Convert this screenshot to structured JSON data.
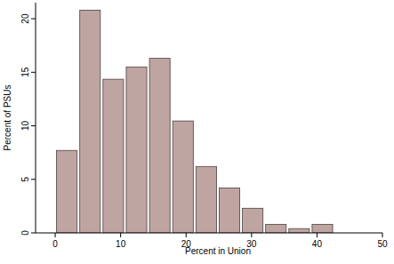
{
  "chart_data": {
    "type": "histogram",
    "x_label": "Percent in Union",
    "y_label": "Percent of PSUs",
    "bins": [
      0,
      3.55,
      7.1,
      10.65,
      14.2,
      17.75,
      21.3,
      24.85,
      28.4,
      31.95,
      35.5,
      39.05,
      42.6
    ],
    "values": [
      7.7,
      20.8,
      14.35,
      15.5,
      16.3,
      10.45,
      6.2,
      4.2,
      2.3,
      0.8,
      0.4,
      0.8
    ],
    "color": "#bfa5a2",
    "xlim": [
      -3,
      50
    ],
    "xticks": [
      0,
      10,
      20,
      30,
      40,
      50
    ],
    "ylim": [
      0,
      21.5
    ],
    "yticks": [
      0,
      5,
      10,
      15,
      20
    ],
    "grid": false
  }
}
